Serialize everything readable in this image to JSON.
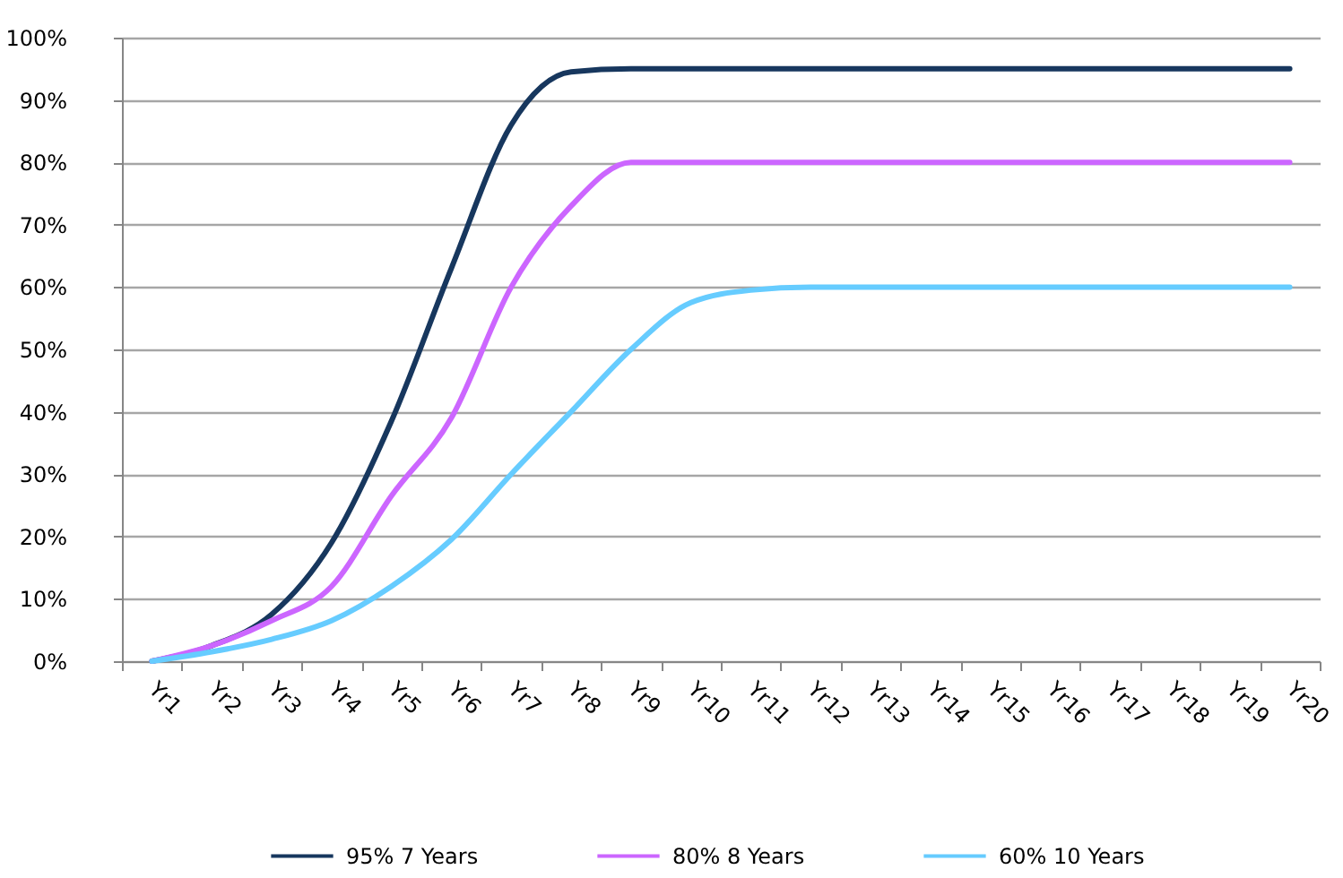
{
  "chart_data": {
    "type": "line",
    "categories": [
      "Yr1",
      "Yr2",
      "Yr3",
      "Yr4",
      "Yr5",
      "Yr6",
      "Yr7",
      "Yr8",
      "Yr9",
      "Yr10",
      "Yr11",
      "Yr12",
      "Yr13",
      "Yr14",
      "Yr15",
      "Yr16",
      "Yr17",
      "Yr18",
      "Yr19",
      "Yr20"
    ],
    "series": [
      {
        "name": "95% 7 Years",
        "color": "#17375e",
        "values": [
          0,
          2.5,
          7.5,
          19,
          38.5,
          63,
          86,
          94.5,
          95,
          95,
          95,
          95,
          95,
          95,
          95,
          95,
          95,
          95,
          95,
          95
        ]
      },
      {
        "name": "80% 8 Years",
        "color": "#cc66ff",
        "values": [
          0,
          2.5,
          6.5,
          12,
          26.5,
          39,
          60,
          73,
          80,
          80,
          80,
          80,
          80,
          80,
          80,
          80,
          80,
          80,
          80,
          80
        ]
      },
      {
        "name": "60% 10 Years",
        "color": "#66ccff",
        "values": [
          0,
          1.5,
          3.5,
          6.5,
          12,
          19.5,
          30,
          40,
          50,
          57.5,
          59.5,
          60,
          60,
          60,
          60,
          60,
          60,
          60,
          60,
          60
        ]
      }
    ],
    "ylim": [
      0,
      100
    ],
    "yticks": [
      {
        "value": 0,
        "label": "0%"
      },
      {
        "value": 10,
        "label": "10%"
      },
      {
        "value": 20,
        "label": "20%"
      },
      {
        "value": 30,
        "label": "30%"
      },
      {
        "value": 40,
        "label": "40%"
      },
      {
        "value": 50,
        "label": "50%"
      },
      {
        "value": 60,
        "label": "60%"
      },
      {
        "value": 70,
        "label": "70%"
      },
      {
        "value": 80,
        "label": "80%"
      },
      {
        "value": 90,
        "label": "90%"
      },
      {
        "value": 100,
        "label": "100%"
      }
    ],
    "grid": "y",
    "legend": "bottom"
  }
}
